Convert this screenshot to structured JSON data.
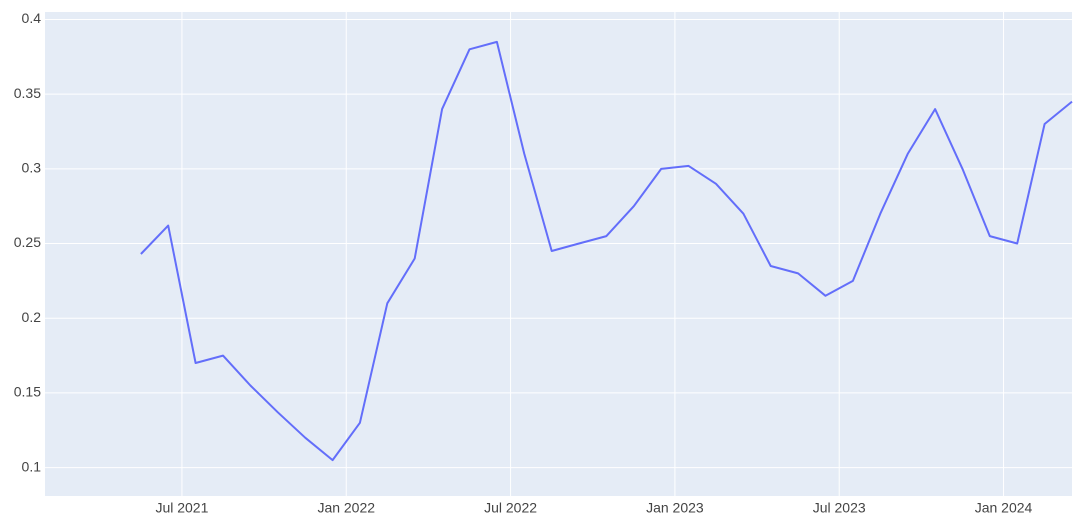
{
  "chart_data": {
    "type": "line",
    "x": [
      "2021-05",
      "2021-06",
      "2021-07",
      "2021-08",
      "2021-09",
      "2021-10",
      "2021-11",
      "2021-12",
      "2022-01",
      "2022-02",
      "2022-03",
      "2022-04",
      "2022-05",
      "2022-06",
      "2022-07",
      "2022-08",
      "2022-09",
      "2022-10",
      "2022-11",
      "2022-12",
      "2023-01",
      "2023-02",
      "2023-03",
      "2023-04",
      "2023-05",
      "2023-06",
      "2023-07",
      "2023-08",
      "2023-09",
      "2023-10",
      "2023-11",
      "2023-12",
      "2024-01",
      "2024-02",
      "2024-03"
    ],
    "series": [
      {
        "color": "#636efa",
        "values": [
          0.243,
          0.262,
          0.17,
          0.175,
          0.155,
          0.137,
          0.12,
          0.105,
          0.13,
          0.21,
          0.24,
          0.34,
          0.38,
          0.385,
          0.31,
          0.245,
          0.25,
          0.255,
          0.275,
          0.3,
          0.302,
          0.29,
          0.27,
          0.235,
          0.23,
          0.215,
          0.225,
          0.27,
          0.31,
          0.34,
          0.3,
          0.255,
          0.25,
          0.33,
          0.345
        ]
      }
    ],
    "xlim": [
      "2021-02",
      "2024-03"
    ],
    "xticks": [
      {
        "value": "2021-07",
        "label": "Jul 2021"
      },
      {
        "value": "2022-01",
        "label": "Jan 2022"
      },
      {
        "value": "2022-07",
        "label": "Jul 2022"
      },
      {
        "value": "2023-01",
        "label": "Jan 2023"
      },
      {
        "value": "2023-07",
        "label": "Jul 2023"
      },
      {
        "value": "2024-01",
        "label": "Jan 2024"
      }
    ],
    "ylim": [
      0.081,
      0.405
    ],
    "yticks": [
      0.1,
      0.15,
      0.2,
      0.25,
      0.3,
      0.35,
      0.4
    ],
    "grid": true
  }
}
